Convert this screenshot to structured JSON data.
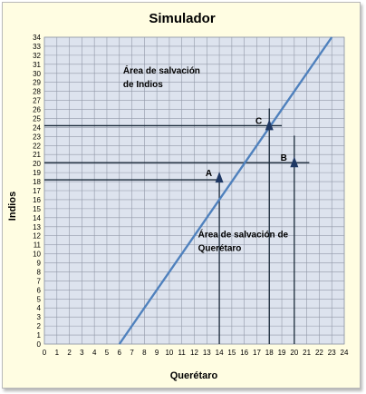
{
  "chart_data": {
    "type": "line",
    "title": "Simulador",
    "xlabel": "Querétaro",
    "ylabel": "Indios",
    "xlim": [
      0,
      24
    ],
    "ylim": [
      0,
      34
    ],
    "x_ticks": [
      0,
      1,
      2,
      3,
      4,
      5,
      6,
      7,
      8,
      9,
      10,
      11,
      12,
      13,
      14,
      15,
      16,
      17,
      18,
      19,
      20,
      21,
      22,
      23,
      24
    ],
    "y_ticks": [
      0,
      1,
      2,
      3,
      4,
      5,
      6,
      7,
      8,
      9,
      10,
      11,
      12,
      13,
      14,
      15,
      16,
      17,
      18,
      19,
      20,
      21,
      22,
      23,
      24,
      25,
      26,
      27,
      28,
      29,
      30,
      31,
      32,
      33,
      34
    ],
    "grid": true,
    "series": [
      {
        "x": [
          6,
          23
        ],
        "y": [
          0,
          34
        ],
        "color": "#4f81bd"
      }
    ],
    "reference_lines": [
      {
        "y": 18.2,
        "x_from": 0,
        "x_to": 14
      },
      {
        "y": 20.1,
        "x_from": 0,
        "x_to": 21.2
      },
      {
        "y": 24.2,
        "x_from": 0,
        "x_to": 19
      },
      {
        "x": 14,
        "y_from": 0,
        "y_to": 18.7
      },
      {
        "x": 18,
        "y_from": 0,
        "y_to": 26.1
      },
      {
        "x": 20,
        "y_from": 0,
        "y_to": 23.1
      }
    ],
    "points": [
      {
        "label": "A",
        "x": 14,
        "y": 18.5
      },
      {
        "label": "B",
        "x": 20,
        "y": 20.2
      },
      {
        "label": "C",
        "x": 18,
        "y": 24.3
      }
    ],
    "annotations": [
      {
        "lines": [
          "Área de salvación",
          "de Indios"
        ],
        "x": 6.3,
        "y": 30.0
      },
      {
        "lines": [
          "Área de salvación de",
          "Querétaro"
        ],
        "x": 12.3,
        "y": 11.8
      }
    ],
    "colors": {
      "background": "#fffde2",
      "plot_area": "#dde3ee",
      "grid": "#9299a8",
      "line": "#4f81bd",
      "reference": "#1a2a3a",
      "marker": "#1f3864",
      "text": "#000000"
    }
  }
}
